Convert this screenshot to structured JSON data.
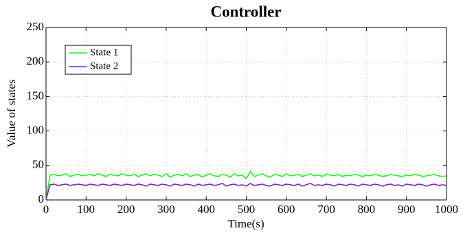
{
  "chart_data": {
    "type": "line",
    "title": "Controller",
    "xlabel": "Time(s)",
    "ylabel": "Value of states",
    "x": [
      0,
      10,
      20,
      30,
      40,
      50,
      60,
      70,
      80,
      90,
      100,
      110,
      120,
      130,
      140,
      150,
      160,
      170,
      180,
      190,
      200,
      210,
      220,
      230,
      240,
      250,
      260,
      270,
      280,
      290,
      300,
      310,
      320,
      330,
      340,
      350,
      360,
      370,
      380,
      390,
      400,
      410,
      420,
      430,
      440,
      450,
      460,
      470,
      480,
      490,
      500,
      510,
      520,
      530,
      540,
      550,
      560,
      570,
      580,
      590,
      600,
      610,
      620,
      630,
      640,
      650,
      660,
      670,
      680,
      690,
      700,
      710,
      720,
      730,
      740,
      750,
      760,
      770,
      780,
      790,
      800,
      810,
      820,
      830,
      840,
      850,
      860,
      870,
      880,
      890,
      900,
      910,
      920,
      930,
      940,
      950,
      960,
      970,
      980,
      990,
      1000
    ],
    "series": [
      {
        "name": "State 1",
        "color": "#22ee22",
        "values": [
          0,
          36,
          37,
          35,
          36,
          38,
          34,
          36,
          37,
          35,
          36,
          37,
          35,
          38,
          36,
          34,
          37,
          36,
          35,
          38,
          36,
          35,
          37,
          34,
          36,
          38,
          35,
          37,
          36,
          34,
          38,
          33,
          36,
          37,
          35,
          38,
          34,
          36,
          37,
          33,
          36,
          38,
          35,
          34,
          37,
          36,
          33,
          38,
          35,
          36,
          31,
          41,
          34,
          36,
          38,
          35,
          33,
          37,
          36,
          34,
          38,
          35,
          36,
          37,
          34,
          36,
          38,
          35,
          36,
          34,
          37,
          36,
          35,
          37,
          34,
          36,
          35,
          37,
          36,
          34,
          36,
          35,
          37,
          36,
          34,
          35,
          37,
          36,
          35,
          34,
          36,
          35,
          37,
          36,
          34,
          35,
          36,
          37,
          35,
          34,
          35
        ]
      },
      {
        "name": "State 2",
        "color": "#7b22c8",
        "values": [
          0,
          22,
          23,
          21,
          22,
          23,
          21,
          22,
          23,
          22,
          21,
          23,
          22,
          21,
          23,
          22,
          21,
          23,
          22,
          21,
          23,
          22,
          21,
          23,
          22,
          20,
          23,
          22,
          21,
          23,
          22,
          20,
          23,
          22,
          21,
          23,
          22,
          20,
          23,
          21,
          22,
          23,
          21,
          22,
          24,
          20,
          22,
          23,
          21,
          22,
          20,
          24,
          21,
          22,
          23,
          21,
          20,
          23,
          22,
          21,
          23,
          22,
          21,
          23,
          20,
          22,
          24,
          21,
          22,
          21,
          23,
          22,
          20,
          23,
          22,
          21,
          23,
          22,
          20,
          23,
          22,
          21,
          23,
          22,
          20,
          22,
          23,
          21,
          22,
          20,
          23,
          22,
          21,
          23,
          22,
          20,
          22,
          23,
          21,
          22,
          21
        ]
      }
    ],
    "xlim": [
      0,
      1000
    ],
    "xticks": [
      0,
      100,
      200,
      300,
      400,
      500,
      600,
      700,
      800,
      900,
      1000
    ],
    "ylim": [
      0,
      250
    ],
    "yticks": [
      0,
      50,
      100,
      150,
      200,
      250
    ],
    "grid": true,
    "legend": "upper left"
  }
}
